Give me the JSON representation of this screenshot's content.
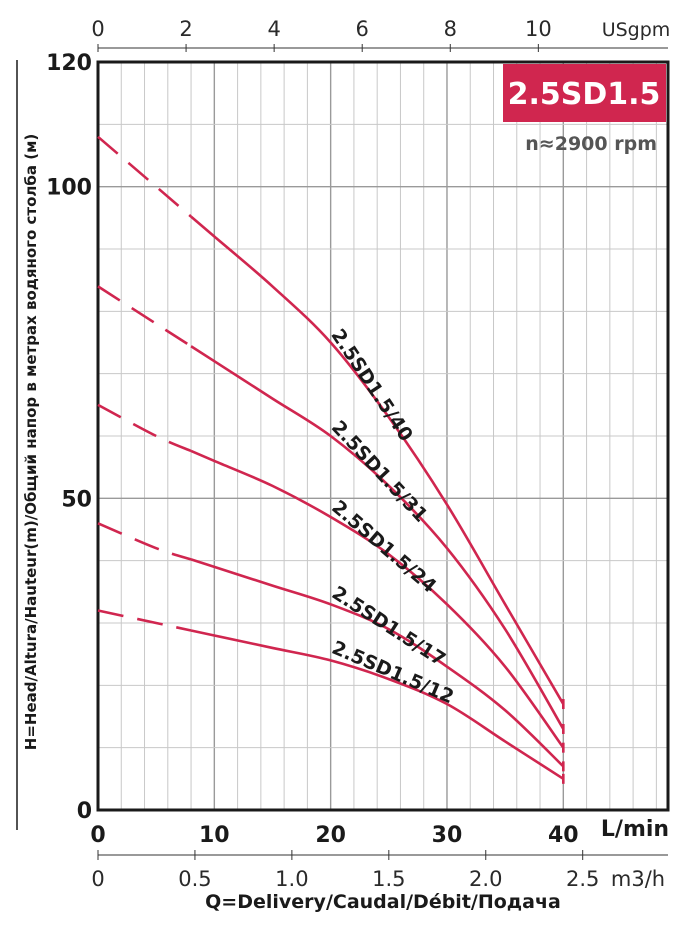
{
  "chart_data": {
    "type": "line",
    "badge": "2.5SD1.5",
    "speed": "n≈2900 rpm",
    "xlabel": "Q=Delivery/Caudal/Débit/Подача",
    "ylabel": "H=Head/Altura/Hauteur(m)/Общий напор в метрах водяного столба (м)",
    "x_unit_main": "L/min",
    "x_unit_m3h": "m3/h",
    "x_unit_usgpm": "USgpm",
    "xlim": [
      0,
      49
    ],
    "ylim": [
      0,
      120
    ],
    "grid": true,
    "x_ticks": [
      "0",
      "10",
      "20",
      "30",
      "40"
    ],
    "x_ticks_m3h": [
      "0",
      "0.5",
      "1.0",
      "1.5",
      "2.0",
      "2.5"
    ],
    "x_ticks_usgpm": [
      "0",
      "2",
      "4",
      "6",
      "8",
      "10"
    ],
    "y_ticks": [
      "0",
      "50",
      "100",
      "120"
    ],
    "dashed_until_x": 8,
    "series": [
      {
        "name": "2.5SD1.5/40",
        "x": [
          0,
          5,
          10,
          15,
          20,
          25,
          30,
          35,
          40
        ],
        "y": [
          108,
          100,
          92,
          84,
          75,
          63,
          49,
          33,
          17
        ]
      },
      {
        "name": "2.5SD1.5/31",
        "x": [
          0,
          5,
          10,
          15,
          20,
          25,
          30,
          35,
          40
        ],
        "y": [
          84,
          78,
          72,
          66,
          60,
          52,
          42,
          29,
          13
        ]
      },
      {
        "name": "2.5SD1.5/24",
        "x": [
          0,
          5,
          10,
          15,
          20,
          25,
          30,
          35,
          40
        ],
        "y": [
          65,
          60,
          56,
          52,
          47,
          41,
          33,
          23,
          10
        ]
      },
      {
        "name": "2.5SD1.5/17",
        "x": [
          0,
          5,
          10,
          15,
          20,
          25,
          30,
          35,
          40
        ],
        "y": [
          46,
          42,
          39,
          36,
          33,
          29,
          23,
          16,
          7
        ]
      },
      {
        "name": "2.5SD1.5/12",
        "x": [
          0,
          5,
          10,
          15,
          20,
          25,
          30,
          35,
          40
        ],
        "y": [
          32,
          30,
          28,
          26,
          24,
          21,
          17,
          11,
          5
        ]
      }
    ]
  }
}
